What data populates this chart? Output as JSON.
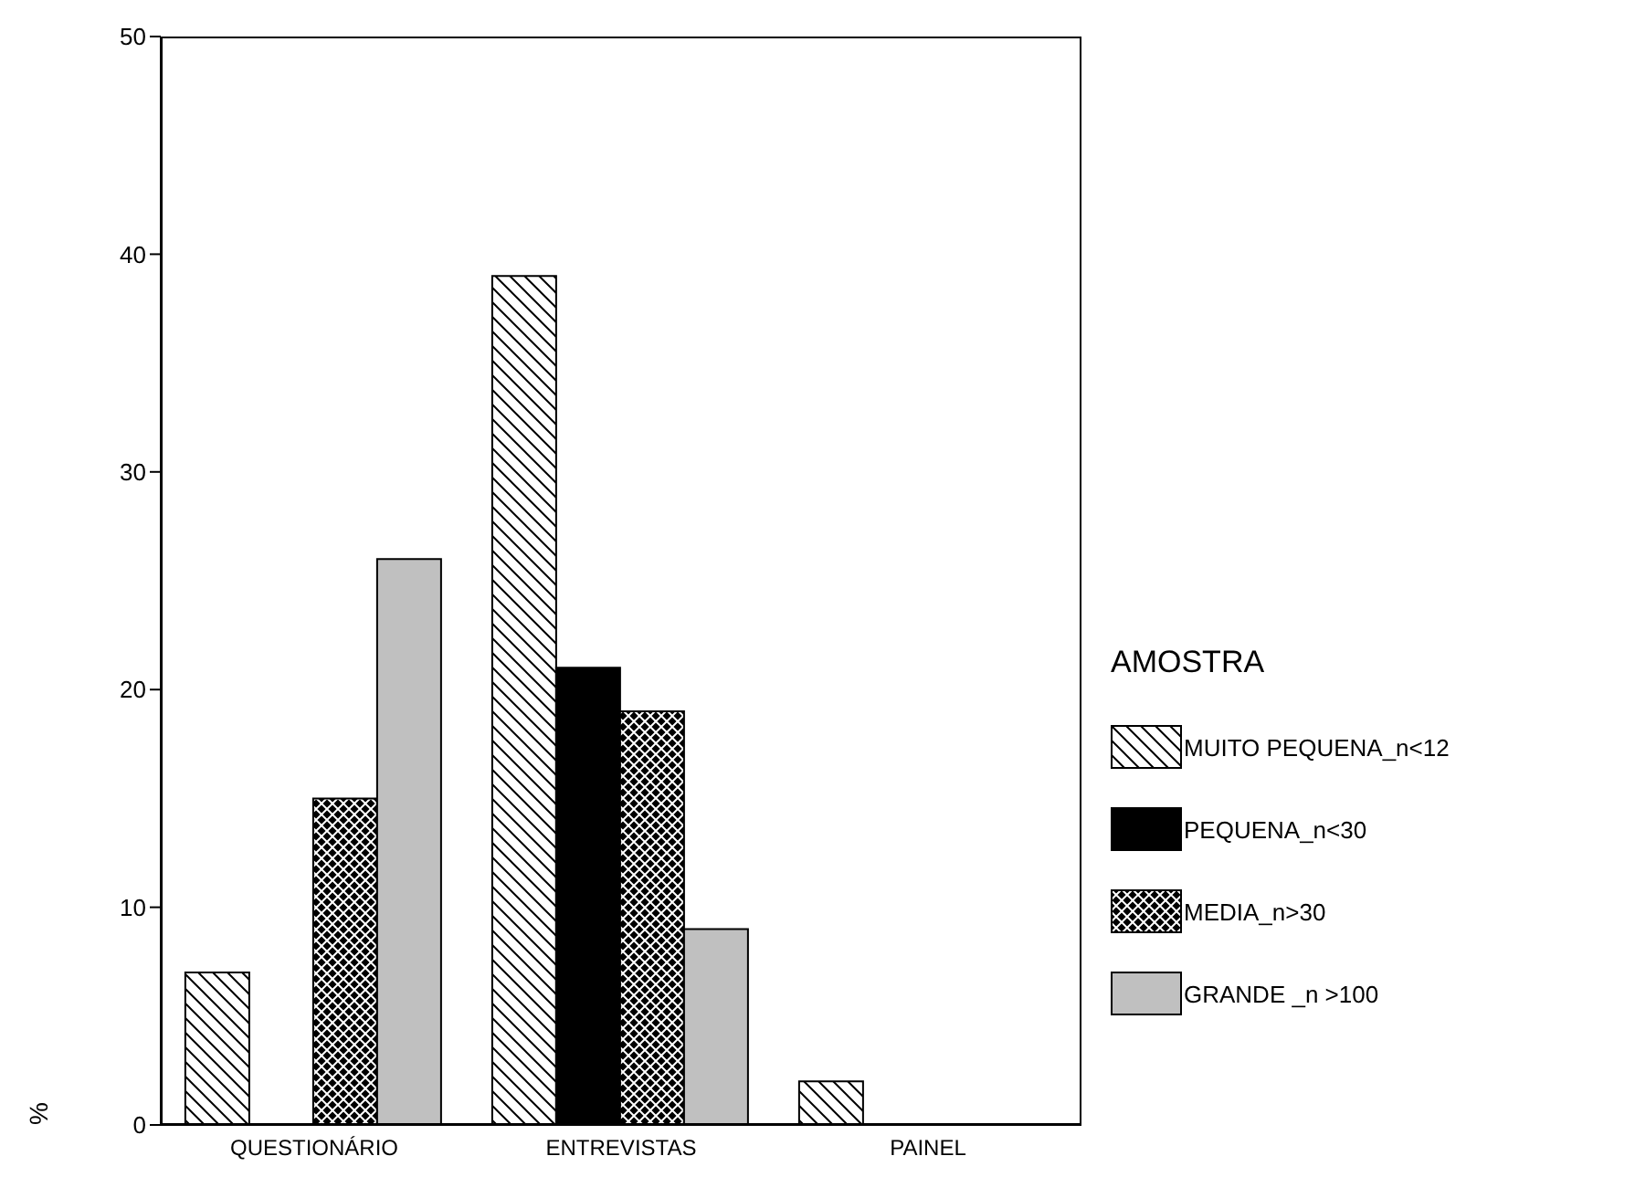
{
  "chart_data": {
    "type": "bar",
    "ylabel": "%",
    "legend_title": "AMOSTRA",
    "legend": "right",
    "categories": [
      "QUESTIONÁRIO",
      "ENTREVISTAS",
      "PAINEL"
    ],
    "ylim": [
      0,
      50
    ],
    "yticks": [
      0,
      10,
      20,
      30,
      40,
      50
    ],
    "grid": false,
    "series": [
      {
        "name": "MUITO PEQUENA_n<12",
        "color": "#000000",
        "values": [
          7,
          39,
          2
        ]
      },
      {
        "name": "PEQUENA_n<30",
        "color": "#000000",
        "values": [
          null,
          21,
          null
        ]
      },
      {
        "name": "MEDIA_n>30",
        "color": "#000000",
        "values": [
          15,
          19,
          null
        ]
      },
      {
        "name": "GRANDE _n >100",
        "color": "#c0c0c0",
        "values": [
          26,
          9,
          null
        ]
      }
    ]
  }
}
